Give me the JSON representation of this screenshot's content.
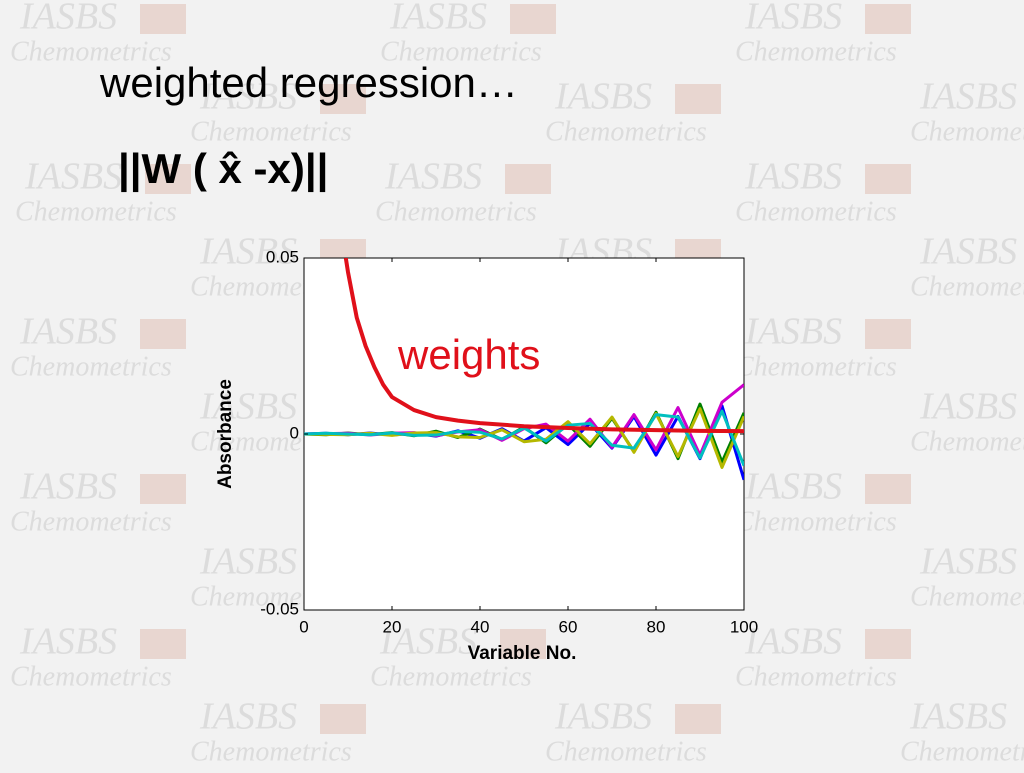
{
  "slide": {
    "title": "weighted regression…",
    "formula": "||W ( x̂ -x)||"
  },
  "watermark": {
    "title": "IASBS",
    "subtitle": "Chemometrics"
  },
  "chart_data": {
    "type": "line",
    "x_label": "Variable No.",
    "y_label": "Absorbance",
    "annotation": "weights",
    "xlim": [
      0,
      100
    ],
    "ylim": [
      -0.05,
      0.05
    ],
    "xticks": [
      0,
      20,
      40,
      60,
      80,
      100
    ],
    "yticks": [
      -0.05,
      0,
      0.05
    ],
    "x": [
      0,
      5,
      10,
      15,
      20,
      25,
      30,
      35,
      40,
      45,
      50,
      55,
      60,
      65,
      70,
      75,
      80,
      85,
      90,
      95,
      100
    ],
    "series": [
      {
        "color": "#0000ff",
        "values": [
          0,
          0.0002,
          -0.0002,
          0.0003,
          -0.0003,
          0.0002,
          -0.0006,
          0.0009,
          -0.0012,
          0.0015,
          -0.002,
          0.0018,
          -0.003,
          0.003,
          -0.004,
          0.005,
          -0.006,
          0.005,
          -0.007,
          0.008,
          -0.013
        ]
      },
      {
        "color": "#008000",
        "values": [
          0,
          -0.0002,
          0.0003,
          -0.0002,
          0.0004,
          -0.0005,
          0.0008,
          -0.001,
          0.0014,
          -0.0016,
          0.002,
          -0.0025,
          0.0028,
          -0.0035,
          0.0045,
          -0.005,
          0.0062,
          -0.007,
          0.0085,
          -0.008,
          0.006
        ]
      },
      {
        "color": "#cc00cc",
        "values": [
          0,
          0.0001,
          0.0002,
          -0.0003,
          0.0002,
          0.0004,
          -0.0005,
          0.0006,
          0.0012,
          -0.0018,
          0.0015,
          0.0028,
          -0.002,
          0.0042,
          -0.0038,
          0.0055,
          -0.0045,
          0.0075,
          -0.006,
          0.009,
          0.014
        ]
      },
      {
        "color": "#b5b800",
        "values": [
          0,
          -0.0001,
          -0.0002,
          0.0002,
          -0.0004,
          0.0003,
          0.0004,
          -0.0008,
          -0.001,
          0.0012,
          -0.0022,
          -0.0015,
          0.0035,
          -0.0028,
          0.0048,
          -0.0052,
          0.0058,
          -0.0064,
          0.0072,
          -0.0095,
          0.005
        ]
      },
      {
        "color": "#00bfbf",
        "values": [
          0,
          0.0002,
          0,
          -0.0002,
          0.0003,
          -0.0004,
          -0.0003,
          0.0007,
          0.0005,
          -0.0014,
          0.0017,
          -0.002,
          0.0025,
          0.003,
          -0.0032,
          -0.004,
          0.0055,
          0.0048,
          -0.0068,
          0.0065,
          -0.009
        ]
      },
      {
        "color": "#e0101a",
        "x": [
          9.5,
          10,
          12,
          14,
          16,
          18,
          20,
          25,
          30,
          35,
          40,
          50,
          60,
          70,
          80,
          90,
          100
        ],
        "values": [
          0.05,
          0.046,
          0.033,
          0.025,
          0.019,
          0.014,
          0.0105,
          0.0068,
          0.0048,
          0.0038,
          0.0031,
          0.0022,
          0.0017,
          0.0013,
          0.0011,
          0.0009,
          0.0008
        ]
      }
    ]
  }
}
